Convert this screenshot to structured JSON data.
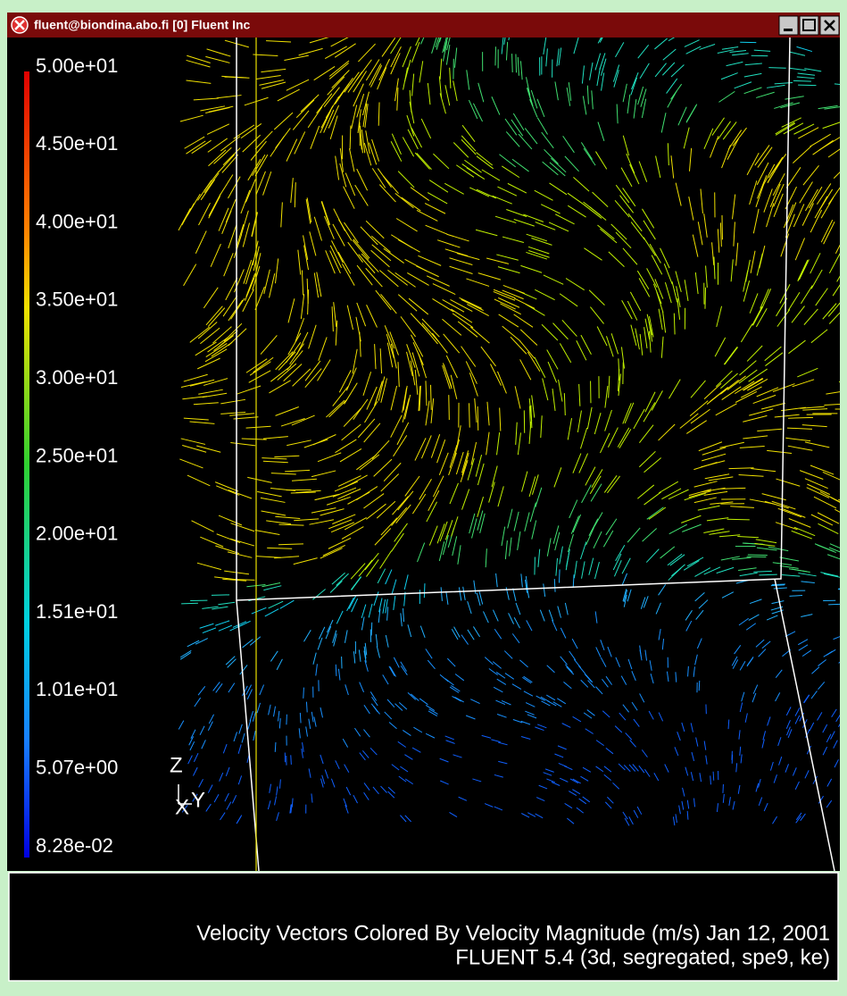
{
  "window": {
    "title": "fluent@biondina.abo.fi [0] Fluent Inc"
  },
  "colorbar": {
    "labels": [
      "5.00e+01",
      "4.50e+01",
      "4.00e+01",
      "3.50e+01",
      "3.00e+01",
      "2.50e+01",
      "2.00e+01",
      "1.51e+01",
      "1.01e+01",
      "5.07e+00",
      "8.28e-02"
    ]
  },
  "axes": {
    "z": "Z",
    "x": "X",
    "y": "Y"
  },
  "caption": {
    "line1": "Velocity Vectors Colored By Velocity Magnitude (m/s) Jan 12, 2001",
    "line2": "FLUENT 5.4 (3d, segregated, spe9, ke)"
  }
}
